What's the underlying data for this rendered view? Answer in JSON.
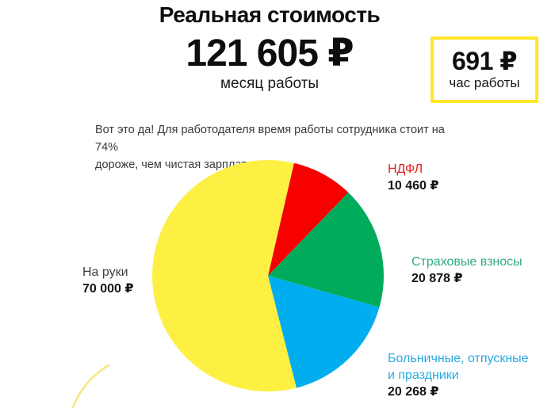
{
  "header": {
    "title": "Реальная стоимость",
    "monthly": {
      "value": "121 605 ₽",
      "label": "месяц работы"
    },
    "hourly": {
      "value": "691 ₽",
      "label": "час работы",
      "box_border_color": "#ffe629"
    }
  },
  "note": {
    "lines": [
      "Вот это да! Для работодателя время работы сотрудника стоит на 74%",
      "дороже, чем чистая зарплата."
    ]
  },
  "chart_data": {
    "type": "pie",
    "title": "Реальная стоимость",
    "total_value": 121605,
    "total_display": "121 605 ₽",
    "start_angle_deg": 13,
    "direction": "clockwise",
    "legend_position": "around",
    "slices": [
      {
        "id": "ndfl",
        "label": "НДФЛ",
        "value": 10460,
        "display_value": "10 460 ₽",
        "color": "#f80000",
        "label_color": "#e8231d"
      },
      {
        "id": "insurance",
        "label": "Страховые взносы",
        "value": 20878,
        "display_value": "20 878 ₽",
        "color": "#00ab5b",
        "label_color": "#2fac7c"
      },
      {
        "id": "sick",
        "label": "Больничные, отпускные и праздники",
        "value": 20268,
        "display_value": "20 268 ₽",
        "color": "#00aeef",
        "label_color": "#29abe2"
      },
      {
        "id": "net",
        "label": "На руки",
        "value": 70000,
        "display_value": "70 000 ₽",
        "color": "#fdf043",
        "label_color": "#3f3f3f"
      }
    ],
    "slice_label_overrides": {
      "sick_line1": "Больничные, отпускные",
      "sick_line2": "и праздники"
    }
  }
}
